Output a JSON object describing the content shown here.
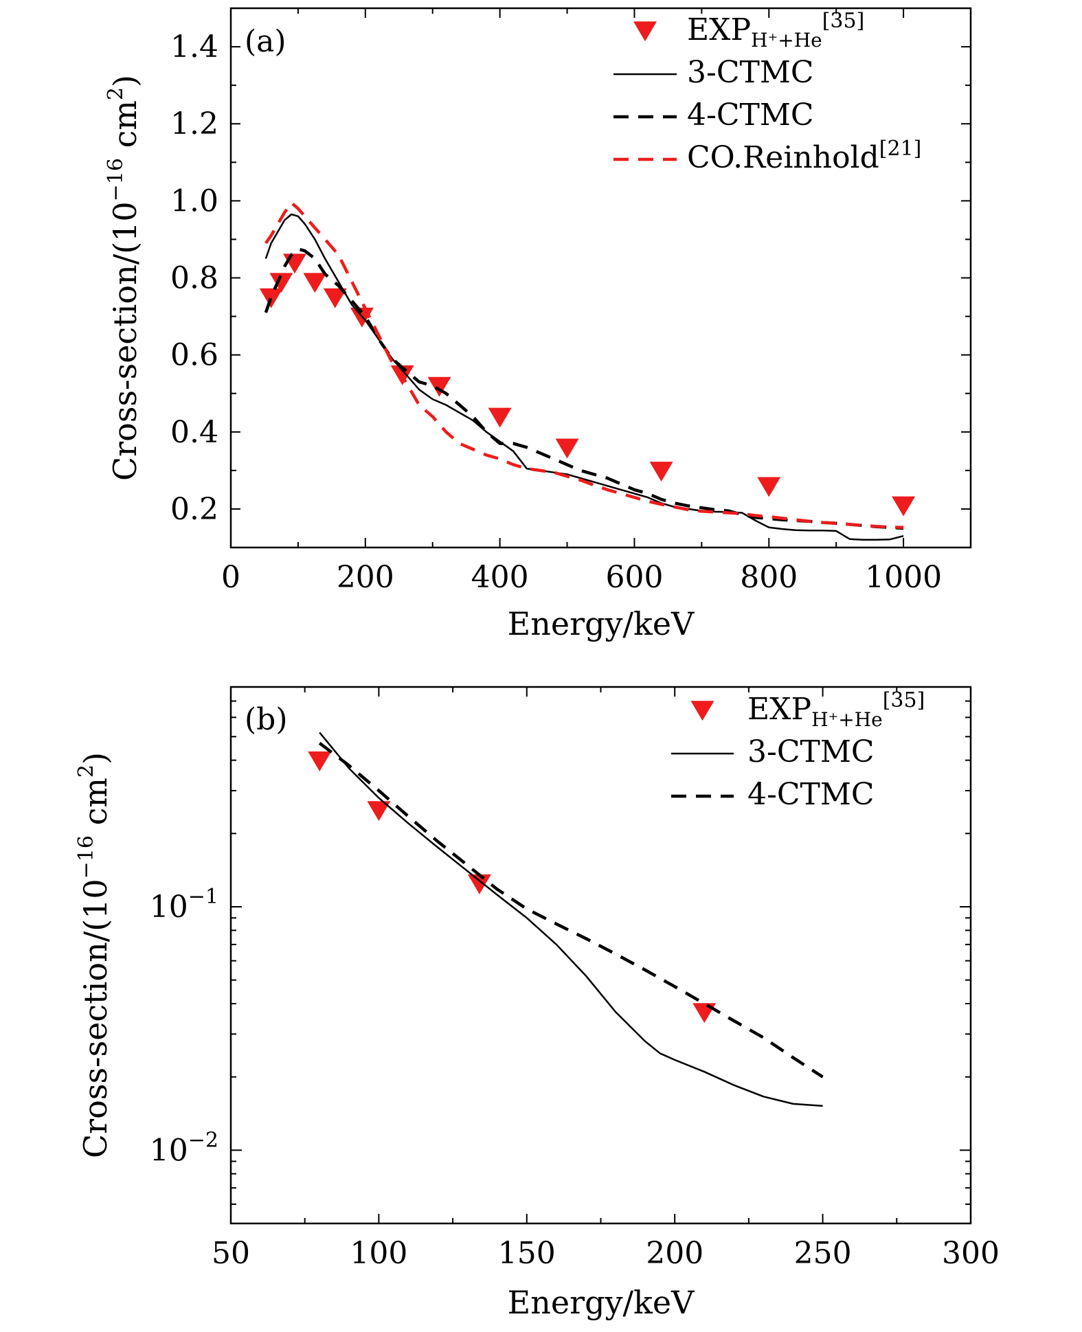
{
  "chart_data": [
    {
      "panel": "(a)",
      "type": "line",
      "xlabel": "Energy/keV",
      "ylabel": "Cross-section/(10",
      "ylabel_exp": "−16",
      "ylabel_unit": " cm",
      "ylabel_unit_exp": "2",
      "ylabel_close": ")",
      "xlim": [
        0,
        1100
      ],
      "ylim": [
        0.1,
        1.5
      ],
      "yscale": "linear",
      "xticks": [
        0,
        200,
        400,
        600,
        800,
        1000
      ],
      "xtick_labels": [
        "0",
        "200",
        "400",
        "600",
        "800",
        "1000"
      ],
      "yticks": [
        0.2,
        0.4,
        0.6,
        0.8,
        1.0,
        1.2,
        1.4
      ],
      "ytick_labels": [
        "0.2",
        "0.4",
        "0.6",
        "0.8",
        "1.0",
        "1.2",
        "1.4"
      ],
      "grid": false,
      "legend_position": "top-right",
      "colors": {
        "exp": "#ee1c1c",
        "ctmc3": "#000000",
        "ctmc4": "#000000",
        "reinhold": "#ee1c1c"
      },
      "series": [
        {
          "name": "EXP",
          "name_sub": "H⁺+He",
          "name_ref": "[35]",
          "style": "triangle-down",
          "x": [
            60,
            75,
            95,
            125,
            155,
            195,
            255,
            310,
            400,
            500,
            640,
            800,
            1000
          ],
          "y": [
            0.75,
            0.79,
            0.84,
            0.79,
            0.75,
            0.7,
            0.55,
            0.52,
            0.44,
            0.36,
            0.3,
            0.26,
            0.21
          ]
        },
        {
          "name": "3-CTMC",
          "style": "solid",
          "x": [
            52,
            60,
            70,
            80,
            90,
            100,
            110,
            125,
            140,
            160,
            180,
            200,
            220,
            240,
            260,
            280,
            300,
            320,
            340,
            360,
            380,
            400,
            420,
            440,
            460,
            480,
            500,
            520,
            540,
            560,
            580,
            600,
            620,
            640,
            660,
            680,
            700,
            720,
            740,
            760,
            780,
            800,
            820,
            840,
            860,
            880,
            900,
            920,
            940,
            960,
            980,
            1000
          ],
          "y": [
            0.85,
            0.89,
            0.92,
            0.95,
            0.965,
            0.96,
            0.94,
            0.9,
            0.85,
            0.79,
            0.73,
            0.69,
            0.64,
            0.59,
            0.55,
            0.51,
            0.485,
            0.47,
            0.45,
            0.43,
            0.4,
            0.375,
            0.35,
            0.305,
            0.3,
            0.295,
            0.29,
            0.28,
            0.27,
            0.26,
            0.25,
            0.24,
            0.23,
            0.215,
            0.205,
            0.2,
            0.195,
            0.193,
            0.192,
            0.19,
            0.17,
            0.152,
            0.148,
            0.145,
            0.144,
            0.144,
            0.143,
            0.122,
            0.12,
            0.12,
            0.121,
            0.13
          ]
        },
        {
          "name": "4-CTMC",
          "style": "dashed",
          "x": [
            52,
            60,
            70,
            80,
            90,
            100,
            110,
            125,
            140,
            160,
            180,
            200,
            220,
            240,
            260,
            280,
            300,
            320,
            340,
            360,
            380,
            400,
            420,
            440,
            460,
            480,
            500,
            520,
            540,
            560,
            580,
            600,
            620,
            640,
            660,
            680,
            700,
            720,
            740,
            760,
            780,
            800,
            820,
            840,
            860,
            880,
            900,
            920,
            940,
            960,
            980,
            1000
          ],
          "y": [
            0.71,
            0.75,
            0.79,
            0.83,
            0.86,
            0.875,
            0.87,
            0.85,
            0.81,
            0.78,
            0.74,
            0.7,
            0.64,
            0.59,
            0.56,
            0.53,
            0.52,
            0.5,
            0.47,
            0.44,
            0.4,
            0.37,
            0.37,
            0.36,
            0.345,
            0.33,
            0.315,
            0.3,
            0.29,
            0.28,
            0.265,
            0.25,
            0.24,
            0.225,
            0.215,
            0.208,
            0.203,
            0.198,
            0.195,
            0.185,
            0.178,
            0.175,
            0.172,
            0.17,
            0.168,
            0.165,
            0.163,
            0.16,
            0.157,
            0.154,
            0.152,
            0.15
          ]
        },
        {
          "name": "CO.Reinhold",
          "name_ref": "[21]",
          "style": "dashed",
          "x": [
            52,
            60,
            70,
            80,
            90,
            100,
            110,
            125,
            140,
            160,
            180,
            200,
            220,
            240,
            260,
            280,
            300,
            320,
            340,
            360,
            380,
            400,
            420,
            440,
            460,
            480,
            500,
            520,
            540,
            560,
            580,
            600,
            620,
            640,
            660,
            680,
            700,
            720,
            740,
            760,
            780,
            800,
            820,
            840,
            860,
            880,
            900,
            920,
            940,
            960,
            980,
            1000
          ],
          "y": [
            0.89,
            0.91,
            0.94,
            0.97,
            0.995,
            0.98,
            0.96,
            0.93,
            0.9,
            0.86,
            0.79,
            0.72,
            0.65,
            0.58,
            0.53,
            0.47,
            0.44,
            0.4,
            0.37,
            0.355,
            0.34,
            0.33,
            0.315,
            0.305,
            0.3,
            0.295,
            0.285,
            0.275,
            0.262,
            0.25,
            0.24,
            0.23,
            0.22,
            0.212,
            0.205,
            0.198,
            0.194,
            0.192,
            0.19,
            0.188,
            0.183,
            0.18,
            0.176,
            0.172,
            0.168,
            0.165,
            0.163,
            0.16,
            0.157,
            0.155,
            0.153,
            0.152
          ]
        }
      ]
    },
    {
      "panel": "(b)",
      "type": "line",
      "xlabel": "Energy/keV",
      "ylabel": "Cross-section/(10",
      "ylabel_exp": "−16",
      "ylabel_unit": " cm",
      "ylabel_unit_exp": "2",
      "ylabel_close": ")",
      "xlim": [
        50,
        300
      ],
      "ylim": [
        0.005,
        0.8
      ],
      "yscale": "log",
      "xticks": [
        50,
        100,
        150,
        200,
        250,
        300
      ],
      "xtick_labels": [
        "50",
        "100",
        "150",
        "200",
        "250",
        "300"
      ],
      "yticks": [
        0.01,
        0.1
      ],
      "ytick_labels": [
        {
          "base": "10",
          "exp": "−2"
        },
        {
          "base": "10",
          "exp": "−1"
        }
      ],
      "grid": false,
      "legend_position": "top-right",
      "colors": {
        "exp": "#ee1c1c",
        "ctmc3": "#000000",
        "ctmc4": "#000000"
      },
      "series": [
        {
          "name": "EXP",
          "name_sub": "H⁺+He",
          "name_ref": "[35]",
          "style": "triangle-down",
          "x": [
            80,
            100,
            134,
            210
          ],
          "y": [
            0.4,
            0.25,
            0.125,
            0.037
          ]
        },
        {
          "name": "3-CTMC",
          "style": "solid",
          "x": [
            80,
            90,
            100,
            110,
            120,
            130,
            140,
            150,
            160,
            170,
            180,
            190,
            195,
            200,
            210,
            220,
            230,
            240,
            250
          ],
          "y": [
            0.52,
            0.37,
            0.28,
            0.22,
            0.175,
            0.14,
            0.112,
            0.09,
            0.07,
            0.052,
            0.037,
            0.028,
            0.025,
            0.0235,
            0.021,
            0.0185,
            0.0166,
            0.0155,
            0.0152
          ]
        },
        {
          "name": "4-CTMC",
          "style": "dashed",
          "x": [
            80,
            90,
            100,
            110,
            120,
            130,
            140,
            150,
            160,
            170,
            180,
            190,
            200,
            210,
            220,
            230,
            240,
            250
          ],
          "y": [
            0.47,
            0.38,
            0.3,
            0.235,
            0.185,
            0.148,
            0.118,
            0.098,
            0.085,
            0.074,
            0.064,
            0.055,
            0.047,
            0.04,
            0.034,
            0.029,
            0.024,
            0.02
          ]
        }
      ]
    }
  ]
}
